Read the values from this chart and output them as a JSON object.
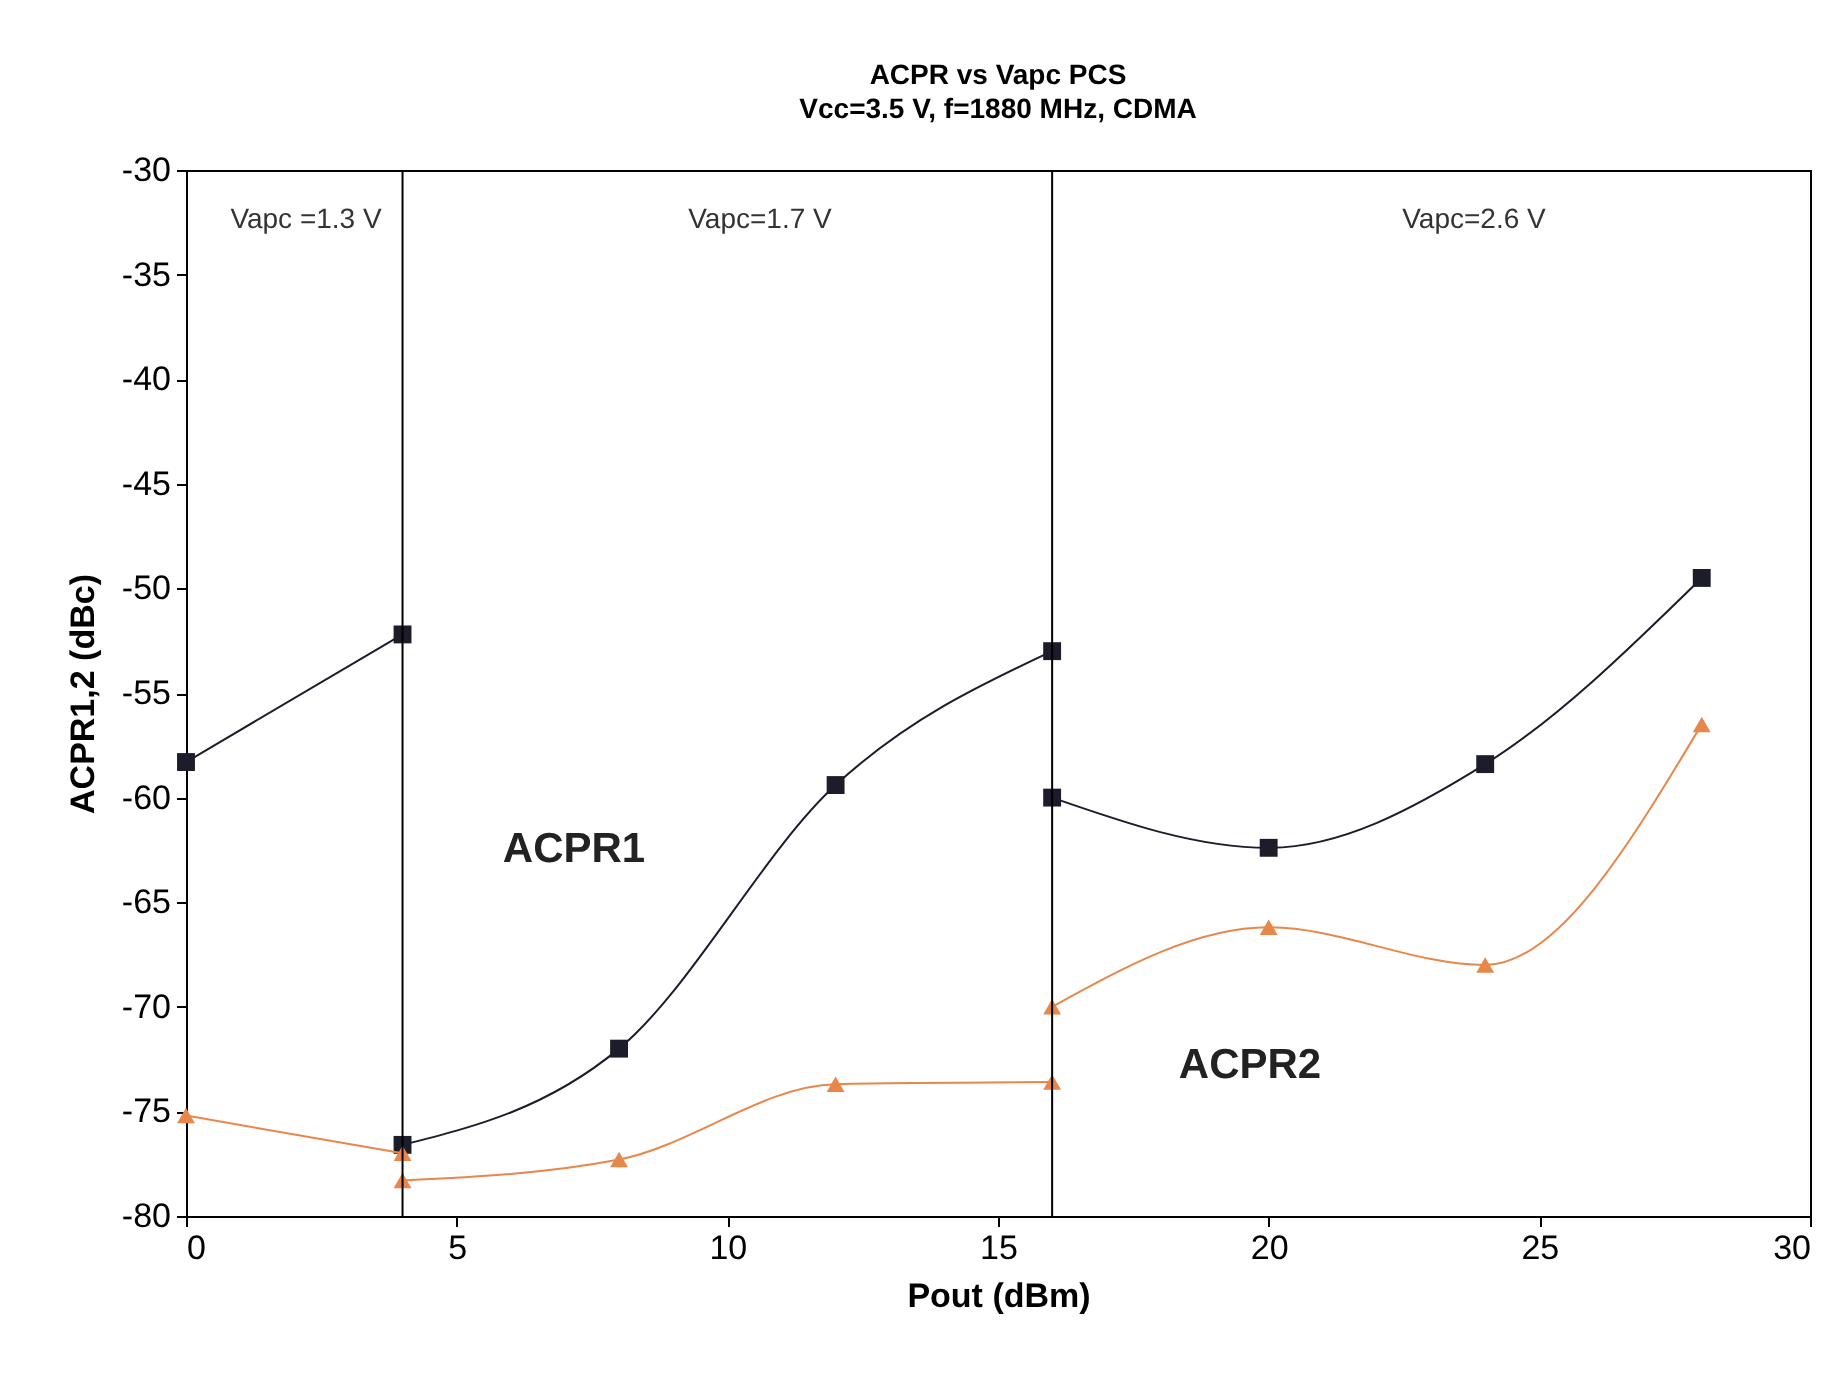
{
  "chart_data": {
    "type": "line",
    "title": "ACPR vs Vapc PCS",
    "subtitle": "Vcc=3.5 V, f=1880 MHz, CDMA",
    "xlabel": "Pout (dBm)",
    "ylabel": "ACPR1,2 (dBc)",
    "xlim": [
      0,
      30
    ],
    "xticks": [
      0,
      5,
      10,
      15,
      20,
      25,
      30
    ],
    "ylim": [
      -80,
      -30
    ],
    "yticks": [
      -80,
      -75,
      -70,
      -65,
      -60,
      -55,
      -50,
      -45,
      -40,
      -35,
      -30
    ],
    "series": [
      {
        "color": "#1c1c2a",
        "marker": "square",
        "x": [
          0,
          4
        ],
        "values": [
          -58.3,
          -52.2
        ]
      },
      {
        "name": "ACPR1",
        "color": "#1c1c2a",
        "marker": "square",
        "x": [
          4,
          8,
          12,
          16
        ],
        "values": [
          -76.6,
          -72,
          -59.4,
          -53
        ]
      },
      {
        "color": "#1c1c2a",
        "marker": "square",
        "x": [
          16,
          20,
          24,
          28
        ],
        "values": [
          -60,
          -62.4,
          -58.4,
          -49.5
        ]
      },
      {
        "color": "#e8874a",
        "marker": "triangle",
        "x": [
          0,
          4
        ],
        "values": [
          -75.2,
          -77
        ]
      },
      {
        "color": "#e8874a",
        "marker": "triangle",
        "x": [
          4,
          8,
          12,
          16
        ],
        "values": [
          -78.3,
          -77.3,
          -73.7,
          -73.6
        ]
      },
      {
        "name": "ACPR2",
        "color": "#e8874a",
        "marker": "triangle",
        "x": [
          16,
          20,
          24,
          28
        ],
        "values": [
          -70,
          -66.2,
          -68,
          -56.5
        ]
      }
    ],
    "ref_lines": [
      {
        "axis": "x",
        "value": 4,
        "color": "#000000"
      },
      {
        "axis": "x",
        "value": 16,
        "color": "#000000"
      }
    ],
    "annotations": [
      "Vapc =1.3 V",
      "Vapc=1.7 V",
      "Vapc=2.6 V"
    ]
  }
}
